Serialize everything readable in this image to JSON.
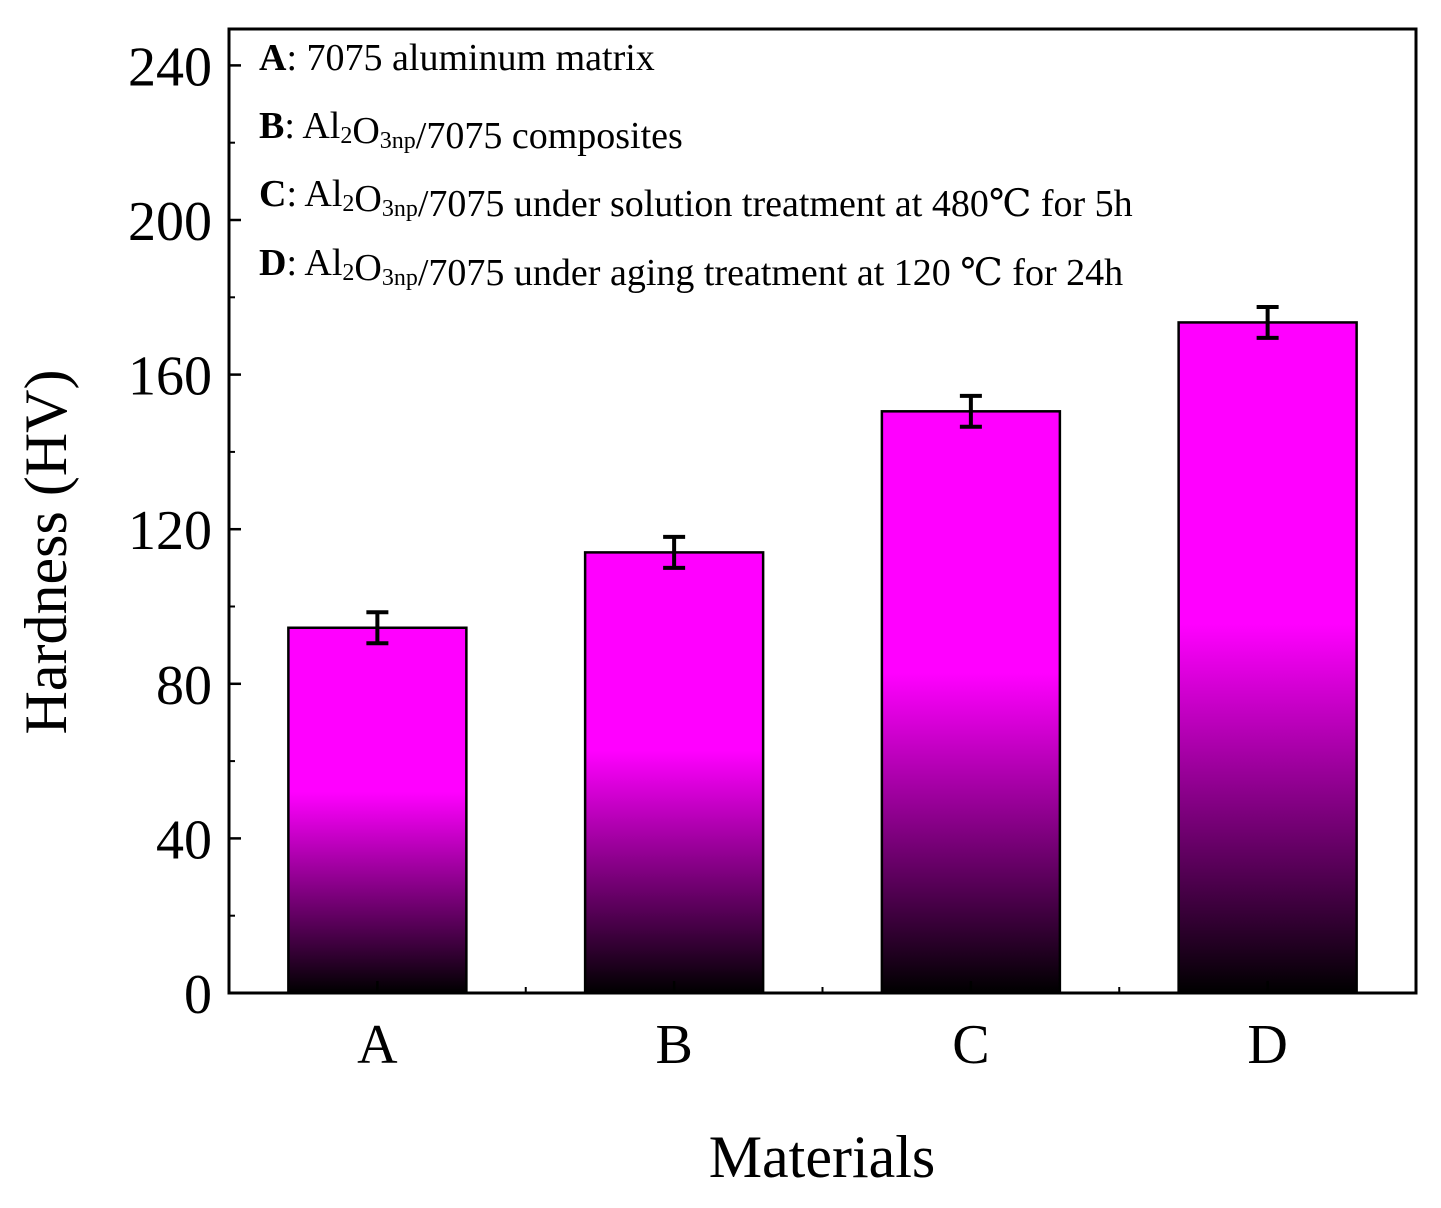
{
  "chart_data": {
    "type": "bar",
    "xlabel": "Materials",
    "ylabel": "Hardness (HV)",
    "ylim": [
      0,
      250
    ],
    "yticks": [
      0,
      40,
      80,
      120,
      160,
      200,
      240
    ],
    "categories": [
      "A",
      "B",
      "C",
      "D"
    ],
    "values": [
      94.5,
      114,
      150.5,
      173.5
    ],
    "errors": [
      4,
      4,
      4,
      4
    ],
    "bar_color_top": "#ff00ff",
    "bar_color_bottom": "#000000",
    "legend": [
      {
        "key": "A",
        "parts": [
          {
            "t": "7075 aluminum matrix"
          }
        ]
      },
      {
        "key": "B",
        "parts": [
          {
            "t": "Al"
          },
          {
            "t": "2",
            "sub": true
          },
          {
            "t": "O"
          },
          {
            "t": "3np",
            "sub": true
          },
          {
            "t": "/7075 composites"
          }
        ]
      },
      {
        "key": "C",
        "parts": [
          {
            "t": "Al"
          },
          {
            "t": "2",
            "sub": true
          },
          {
            "t": "O"
          },
          {
            "t": "3np",
            "sub": true
          },
          {
            "t": "/7075 under solution treatment at 480℃ for 5h"
          }
        ]
      },
      {
        "key": "D",
        "parts": [
          {
            "t": "Al"
          },
          {
            "t": "2",
            "sub": true
          },
          {
            "t": "O"
          },
          {
            "t": "3np",
            "sub": true
          },
          {
            "t": "/7075 under aging treatment at 120 ℃ for 24h"
          }
        ]
      }
    ]
  }
}
